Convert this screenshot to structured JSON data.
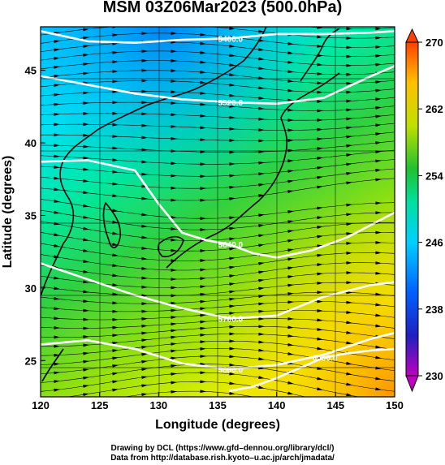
{
  "title": "MSM 03Z06Mar2023 (500.0hPa)",
  "x_axis": {
    "label": "Longitude (degrees)",
    "ticks": [
      "120",
      "125",
      "130",
      "135",
      "140",
      "145",
      "150"
    ]
  },
  "y_axis": {
    "label": "Latitude  (degrees)",
    "ticks": [
      "25",
      "30",
      "35",
      "40",
      "45"
    ]
  },
  "colorbar": {
    "ticks": [
      "230",
      "238",
      "246",
      "254",
      "262",
      "270"
    ]
  },
  "contour_labels": [
    "5400.0",
    "5520.0",
    "5640.0",
    "5760.0",
    "5880.0",
    "6000.0"
  ],
  "credits": [
    "Drawing by DCL (https://www.gfd–dennou.org/library/dcl/)",
    "Data from http://database.rish.kyoto–u.ac.jp/arch/jmadata/"
  ],
  "chart_data": {
    "type": "heatmap",
    "title": "MSM 03Z06Mar2023 (500.0hPa)",
    "xlabel": "Longitude (degrees)",
    "ylabel": "Latitude  (degrees)",
    "xlim": [
      120,
      150
    ],
    "ylim": [
      22.5,
      48
    ],
    "color_range": [
      230,
      270
    ],
    "colorscale": [
      "#c000c0",
      "#3030d0",
      "#0090ff",
      "#00e0e0",
      "#20c840",
      "#c0e000",
      "#ffd000",
      "#ff6000",
      "#ff3000"
    ],
    "contours": [
      {
        "label": "5400.0",
        "lon": [
          120,
          124,
          128,
          132,
          136,
          140,
          144,
          148,
          150
        ],
        "lat": [
          47.7,
          47.0,
          46.9,
          47.1,
          47.2,
          47.5,
          47.5,
          47.6,
          47.7
        ]
      },
      {
        "label": "5520.0",
        "lon": [
          120,
          124,
          128,
          132,
          136,
          140,
          144,
          148,
          150
        ],
        "lat": [
          44.6,
          44.0,
          43.4,
          43.0,
          42.8,
          42.7,
          43.1,
          44.6,
          45.3
        ]
      },
      {
        "label": "5640.0",
        "lon": [
          120,
          124,
          128,
          130,
          132,
          134,
          136,
          138,
          140,
          143,
          146,
          150
        ],
        "lat": [
          38.7,
          38.8,
          38.1,
          35.8,
          33.8,
          33.3,
          33.0,
          32.4,
          32.1,
          32.6,
          33.5,
          35.2
        ]
      },
      {
        "label": "5760.0",
        "lon": [
          120,
          124,
          128,
          132,
          136,
          140,
          144,
          148,
          150
        ],
        "lat": [
          31.7,
          30.6,
          29.5,
          28.6,
          27.9,
          28.1,
          29.4,
          30.2,
          30.4
        ]
      },
      {
        "label": "5880.0",
        "lon": [
          120,
          124,
          128,
          132,
          136,
          140,
          144,
          148,
          150
        ],
        "lat": [
          26.1,
          26.4,
          25.8,
          24.8,
          24.4,
          24.7,
          25.4,
          26.5,
          26.9
        ]
      },
      {
        "label": "6000.0",
        "lon": [
          136,
          138,
          140,
          142,
          144,
          146,
          148,
          150
        ],
        "lat": [
          22.9,
          23.2,
          23.8,
          24.5,
          25.2,
          25.5,
          25.7,
          25.8
        ]
      }
    ]
  }
}
